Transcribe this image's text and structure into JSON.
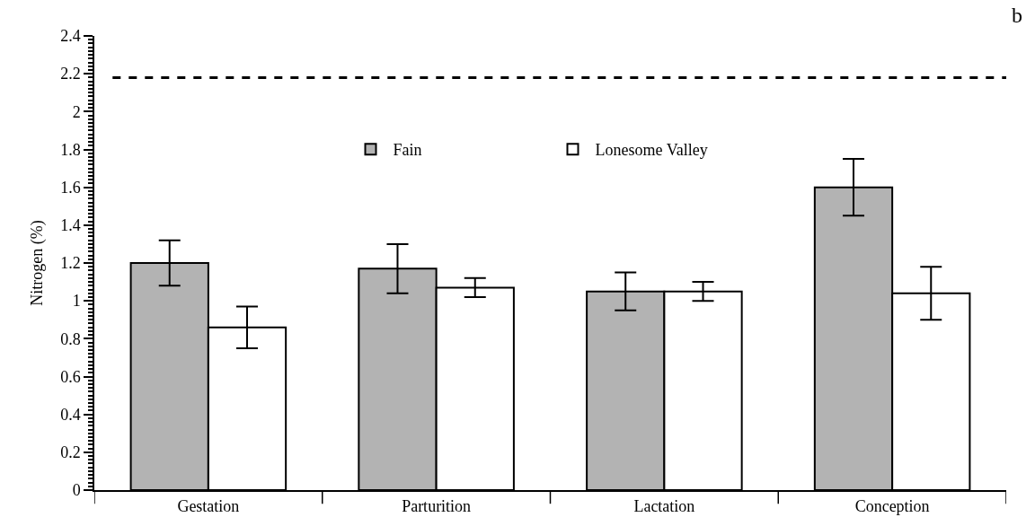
{
  "chart_data": {
    "type": "bar",
    "ylabel": "Nitrogen (%)",
    "annotations": [
      "b"
    ],
    "categories": [
      "Gestation",
      "Parturition",
      "Lactation",
      "Conception"
    ],
    "series": [
      {
        "name": "Fain",
        "color": "#b3b3b3",
        "values": [
          1.2,
          1.17,
          1.05,
          1.6
        ],
        "errors": [
          0.12,
          0.13,
          0.1,
          0.15
        ]
      },
      {
        "name": "Lonesome Valley",
        "color": "#ffffff",
        "values": [
          0.86,
          1.07,
          1.05,
          1.04
        ],
        "errors": [
          0.11,
          0.05,
          0.05,
          0.14
        ]
      }
    ],
    "ylim": [
      0,
      2.4
    ],
    "yticks": [
      0,
      0.2,
      0.4,
      0.6,
      0.8,
      1,
      1.2,
      1.4,
      1.6,
      1.8,
      2,
      2.2,
      2.4
    ],
    "ref_lines": [
      {
        "axis": "y",
        "value": 2.18,
        "label": null,
        "color": "#000000",
        "line_style": "dashed"
      }
    ],
    "legend": "top"
  }
}
